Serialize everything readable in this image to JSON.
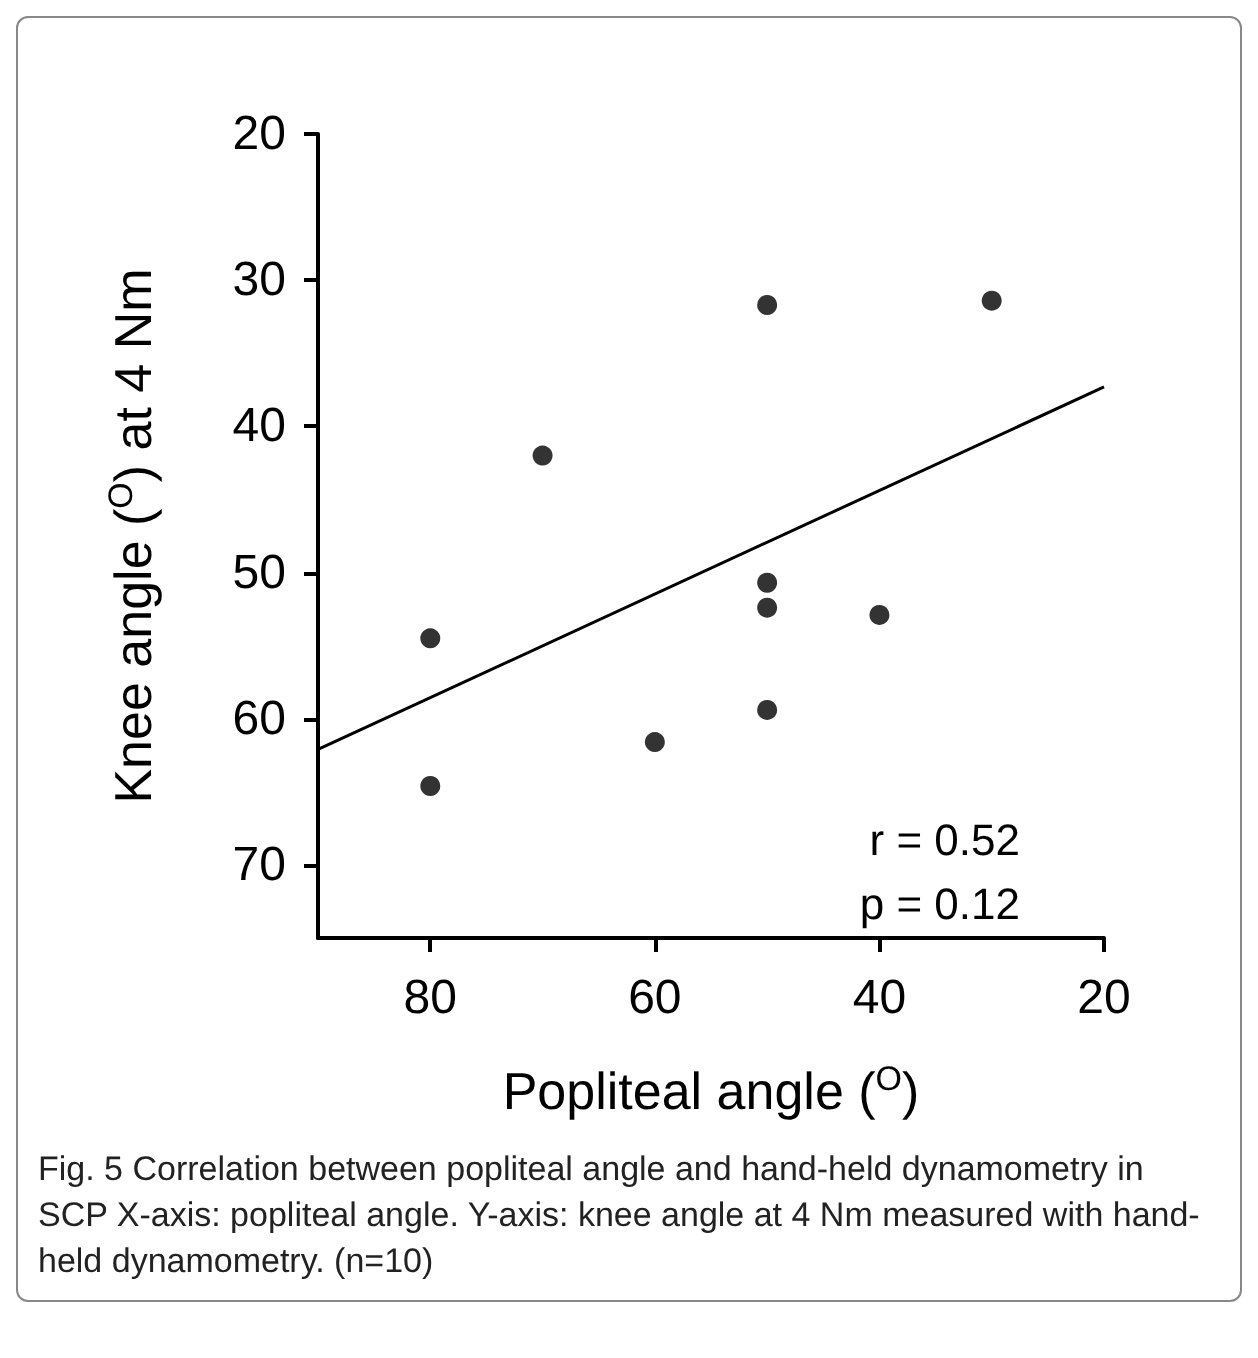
{
  "chart_data": {
    "type": "scatter",
    "xlabel": "Popliteal angle ($^{O}$)",
    "ylabel": "Knee angle ($^{O}$) at 4 Nm",
    "series": [
      {
        "color": "#000000",
        "x": [
          80,
          70,
          80,
          60,
          50,
          30,
          50,
          50,
          40,
          50
        ],
        "values": [
          54.5,
          42.0,
          64.6,
          61.6,
          31.7,
          31.4,
          50.7,
          52.4,
          52.9,
          59.4
        ]
      },
      {
        "type": "line",
        "color": "#000000",
        "x": [
          90,
          20
        ],
        "values": [
          62.1,
          37.3
        ],
        "marker": "none"
      }
    ],
    "xlim": [
      90,
      20
    ],
    "xticks": [
      80,
      60,
      40,
      20
    ],
    "ylim": [
      75,
      20
    ],
    "yticks": [
      20,
      30,
      40,
      50,
      60,
      70
    ],
    "marker": "circle",
    "grid": false,
    "annotations": [
      "r = 0.52",
      "p = 0.12",
      "Fig. 5 Correlation between popliteal angle and hand-held dynamometry in SCP X-axis: popliteal angle. Y-axis: knee angle at 4 Nm measured with hand-held dynamometry. (n=10)"
    ]
  }
}
